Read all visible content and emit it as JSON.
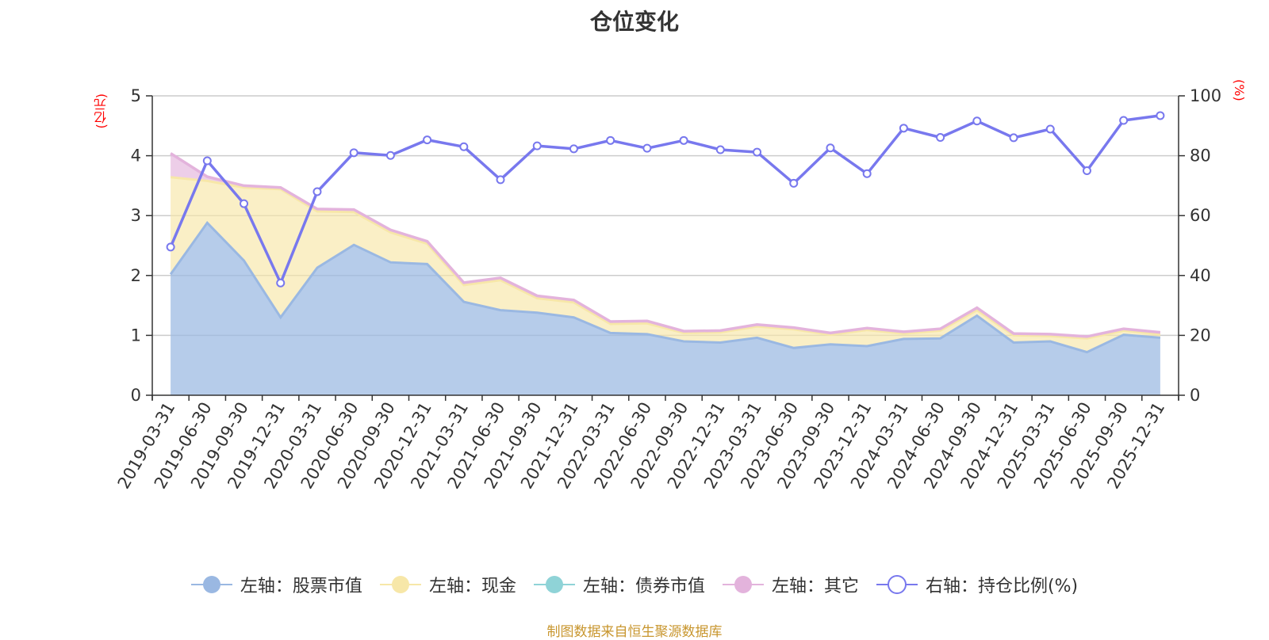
{
  "title": "仓位变化",
  "units": {
    "left": "(亿元)",
    "right": "(%)"
  },
  "source": "制图数据来自恒生聚源数据库",
  "colors": {
    "stock": "#9ab8e2",
    "cash": "#f7e7a8",
    "bond": "#8fd3d7",
    "other": "#e3b3dc",
    "ratio": "#7878ee",
    "axis": "#333333",
    "grid": "#cccccc"
  },
  "legend": [
    {
      "key": "stock",
      "label": "左轴：股票市值",
      "style": "area"
    },
    {
      "key": "cash",
      "label": "左轴：现金",
      "style": "area"
    },
    {
      "key": "bond",
      "label": "左轴：债券市值",
      "style": "area"
    },
    {
      "key": "other",
      "label": "左轴：其它",
      "style": "area"
    },
    {
      "key": "ratio",
      "label": "右轴：持仓比例(%)",
      "style": "line"
    }
  ],
  "chart_data": {
    "type": "area",
    "title": "仓位变化",
    "categories": [
      "2019-03-31",
      "2019-06-30",
      "2019-09-30",
      "2019-12-31",
      "2020-03-31",
      "2020-06-30",
      "2020-09-30",
      "2020-12-31",
      "2021-03-31",
      "2021-06-30",
      "2021-09-30",
      "2021-12-31",
      "2022-03-31",
      "2022-06-30",
      "2022-09-30",
      "2022-12-31",
      "2023-03-31",
      "2023-06-30",
      "2023-09-30",
      "2023-12-31",
      "2024-03-31",
      "2024-06-30",
      "2024-09-30",
      "2024-12-31",
      "2025-03-31",
      "2025-06-30",
      "2025-09-30",
      "2025-12-31"
    ],
    "y_left": {
      "label": "(亿元)",
      "min": 0,
      "max": 5,
      "ticks": [
        0,
        1,
        2,
        3,
        4,
        5
      ]
    },
    "y_right": {
      "label": "(%)",
      "min": 0,
      "max": 100,
      "ticks": [
        0,
        20,
        40,
        60,
        80,
        100
      ]
    },
    "series": [
      {
        "name": "左轴：股票市值",
        "key": "stock",
        "axis": "left",
        "stack": true,
        "values": [
          2.02,
          2.88,
          2.25,
          1.3,
          2.13,
          2.51,
          2.22,
          2.19,
          1.56,
          1.42,
          1.38,
          1.3,
          1.04,
          1.02,
          0.9,
          0.88,
          0.96,
          0.79,
          0.85,
          0.82,
          0.94,
          0.95,
          1.33,
          0.88,
          0.9,
          0.72,
          1.01,
          0.96
        ]
      },
      {
        "name": "左轴：现金",
        "key": "cash",
        "axis": "left",
        "stack": true,
        "values": [
          1.62,
          0.7,
          1.22,
          2.14,
          0.94,
          0.55,
          0.5,
          0.34,
          0.28,
          0.5,
          0.24,
          0.25,
          0.15,
          0.18,
          0.14,
          0.17,
          0.19,
          0.31,
          0.16,
          0.27,
          0.09,
          0.13,
          0.09,
          0.12,
          0.09,
          0.23,
          0.07,
          0.06
        ]
      },
      {
        "name": "左轴：债券市值",
        "key": "bond",
        "axis": "left",
        "stack": true,
        "values": [
          0,
          0,
          0,
          0,
          0,
          0,
          0,
          0,
          0,
          0,
          0,
          0,
          0,
          0,
          0,
          0,
          0,
          0,
          0,
          0,
          0,
          0,
          0,
          0,
          0,
          0,
          0,
          0
        ]
      },
      {
        "name": "左轴：其它",
        "key": "other",
        "axis": "left",
        "stack": true,
        "values": [
          0.4,
          0.07,
          0.03,
          0.03,
          0.04,
          0.04,
          0.04,
          0.04,
          0.04,
          0.04,
          0.04,
          0.04,
          0.04,
          0.04,
          0.03,
          0.03,
          0.03,
          0.03,
          0.03,
          0.03,
          0.03,
          0.03,
          0.04,
          0.03,
          0.03,
          0.03,
          0.03,
          0.03
        ]
      },
      {
        "name": "右轴：持仓比例(%)",
        "key": "ratio",
        "axis": "right",
        "type": "line",
        "values": [
          49.5,
          78.3,
          64.0,
          37.5,
          68.0,
          81.0,
          80.1,
          85.3,
          83.0,
          72.0,
          83.3,
          82.3,
          85.1,
          82.5,
          85.1,
          82.0,
          81.2,
          70.8,
          82.6,
          74.0,
          89.2,
          86.1,
          91.6,
          86.0,
          88.9,
          75.0,
          91.8,
          93.4
        ]
      }
    ]
  }
}
